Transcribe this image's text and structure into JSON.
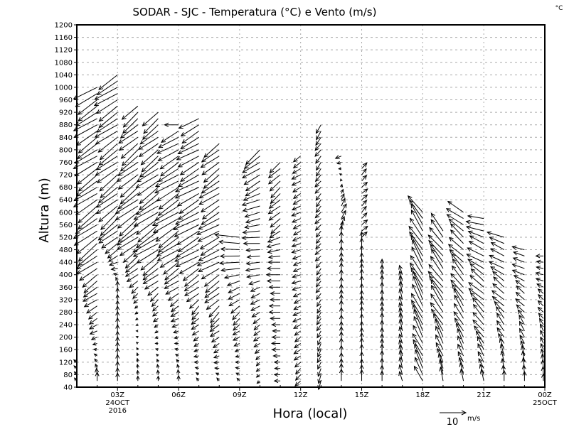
{
  "chart_data": {
    "type": "vector",
    "title": "SODAR - SJC - Temperatura (°C) e Vento (m/s)",
    "corner_unit": "°C",
    "xlabel": "Hora (local)",
    "ylabel": "Altura (m)",
    "ylim": [
      40,
      1200
    ],
    "yticks": [
      40,
      80,
      120,
      160,
      200,
      240,
      280,
      320,
      360,
      400,
      440,
      480,
      520,
      560,
      600,
      640,
      680,
      720,
      760,
      800,
      840,
      880,
      920,
      960,
      1000,
      1040,
      1080,
      1120,
      1160,
      1200
    ],
    "xlim_hours": [
      1,
      24
    ],
    "xticks": [
      {
        "hour": 3,
        "label": "03Z",
        "sub1": "24OCT",
        "sub2": "2016"
      },
      {
        "hour": 6,
        "label": "06Z"
      },
      {
        "hour": 9,
        "label": "09Z"
      },
      {
        "hour": 12,
        "label": "12Z"
      },
      {
        "hour": 15,
        "label": "15Z"
      },
      {
        "hour": 18,
        "label": "18Z"
      },
      {
        "hour": 21,
        "label": "21Z"
      },
      {
        "hour": 24,
        "label": "00Z",
        "sub1": "25OCT"
      }
    ],
    "grid": true,
    "reference_vector": {
      "value": "10",
      "unit": "m/s",
      "speed": 10
    },
    "level_step_m": 20,
    "columns": [
      {
        "hour": 1,
        "bottom": 60,
        "top": 120,
        "profile": [
          [
            60,
            -1,
            1
          ],
          [
            120,
            -1,
            1
          ]
        ]
      },
      {
        "hour": 2,
        "bottom": 60,
        "top": 1000,
        "profile": [
          [
            60,
            0,
            3
          ],
          [
            200,
            -2,
            -1
          ],
          [
            500,
            -8,
            -6
          ],
          [
            1000,
            -8,
            -5
          ]
        ]
      },
      {
        "hour": 3,
        "bottom": 60,
        "top": 1040,
        "profile": [
          [
            60,
            0,
            3
          ],
          [
            360,
            0,
            2
          ],
          [
            560,
            -7,
            -6
          ],
          [
            1040,
            -8,
            -5
          ]
        ]
      },
      {
        "hour": 4,
        "bottom": 60,
        "top": 950,
        "profile": [
          [
            60,
            0,
            2
          ],
          [
            300,
            -1,
            -1
          ],
          [
            560,
            -8,
            -6
          ],
          [
            950,
            -6,
            -5
          ]
        ]
      },
      {
        "hour": 5,
        "bottom": 60,
        "top": 930,
        "profile": [
          [
            60,
            0,
            2
          ],
          [
            300,
            -2,
            -2
          ],
          [
            520,
            -9,
            -6
          ],
          [
            930,
            -6,
            -5
          ]
        ]
      },
      {
        "hour": 6,
        "bottom": 60,
        "top": 880,
        "profile": [
          [
            60,
            0,
            2
          ],
          [
            300,
            -3,
            -2
          ],
          [
            560,
            -9,
            -6
          ],
          [
            860,
            -7,
            -4
          ],
          [
            880,
            -6,
            0
          ]
        ]
      },
      {
        "hour": 7,
        "bottom": 60,
        "top": 900,
        "profile": [
          [
            60,
            -1,
            1
          ],
          [
            300,
            -3,
            -3
          ],
          [
            500,
            -9,
            -5
          ],
          [
            900,
            -7,
            -4
          ]
        ]
      },
      {
        "hour": 8,
        "bottom": 60,
        "top": 820,
        "profile": [
          [
            60,
            -1,
            1
          ],
          [
            300,
            -4,
            -4
          ],
          [
            480,
            -8,
            -4
          ],
          [
            820,
            -6,
            -5
          ]
        ]
      },
      {
        "hour": 9,
        "bottom": 60,
        "top": 520,
        "profile": [
          [
            60,
            -1,
            1
          ],
          [
            300,
            -3,
            -3
          ],
          [
            520,
            -9,
            1
          ]
        ]
      },
      {
        "hour": 10,
        "bottom": 60,
        "top": 800,
        "profile": [
          [
            60,
            -1,
            -1
          ],
          [
            300,
            -3,
            -2
          ],
          [
            500,
            -6,
            0
          ],
          [
            800,
            -6,
            -5
          ]
        ]
      },
      {
        "hour": 11,
        "bottom": 60,
        "top": 760,
        "profile": [
          [
            60,
            -2,
            0
          ],
          [
            440,
            -5,
            0
          ],
          [
            560,
            -4,
            -3
          ],
          [
            760,
            -4,
            -4
          ]
        ]
      },
      {
        "hour": 12,
        "bottom": 60,
        "top": 780,
        "profile": [
          [
            60,
            -2,
            -2
          ],
          [
            400,
            -3,
            -1
          ],
          [
            780,
            -3,
            -2
          ]
        ]
      },
      {
        "hour": 13,
        "bottom": 60,
        "top": 880,
        "profile": [
          [
            60,
            -1,
            -3
          ],
          [
            500,
            -2,
            -2
          ],
          [
            880,
            -2,
            -3
          ]
        ]
      },
      {
        "hour": 14,
        "bottom": 60,
        "top": 780,
        "profile": [
          [
            60,
            0,
            4
          ],
          [
            520,
            0,
            4
          ],
          [
            600,
            2,
            3
          ],
          [
            780,
            -2,
            -1
          ]
        ]
      },
      {
        "hour": 15,
        "bottom": 60,
        "top": 750,
        "profile": [
          [
            60,
            0,
            4
          ],
          [
            500,
            0,
            4
          ],
          [
            520,
            2,
            2
          ],
          [
            750,
            2,
            2
          ]
        ]
      },
      {
        "hour": 16,
        "bottom": 60,
        "top": 430,
        "profile": [
          [
            60,
            0,
            4
          ],
          [
            430,
            0,
            4
          ]
        ]
      },
      {
        "hour": 17,
        "bottom": 60,
        "top": 400,
        "profile": [
          [
            60,
            -1,
            4
          ],
          [
            400,
            -1,
            4
          ]
        ]
      },
      {
        "hour": 18,
        "bottom": 60,
        "top": 600,
        "profile": [
          [
            60,
            -3,
            6
          ],
          [
            300,
            -4,
            8
          ],
          [
            600,
            -5,
            7
          ]
        ]
      },
      {
        "hour": 19,
        "bottom": 60,
        "top": 550,
        "profile": [
          [
            60,
            -1,
            5
          ],
          [
            300,
            -5,
            7
          ],
          [
            550,
            -5,
            6
          ]
        ]
      },
      {
        "hour": 20,
        "bottom": 60,
        "top": 610,
        "profile": [
          [
            60,
            -1,
            4
          ],
          [
            300,
            -4,
            6
          ],
          [
            610,
            -6,
            4
          ]
        ]
      },
      {
        "hour": 21,
        "bottom": 60,
        "top": 580,
        "profile": [
          [
            60,
            -1,
            4
          ],
          [
            300,
            -5,
            5
          ],
          [
            480,
            -6,
            3
          ],
          [
            580,
            -6,
            1
          ]
        ]
      },
      {
        "hour": 22,
        "bottom": 60,
        "top": 530,
        "profile": [
          [
            60,
            0,
            4
          ],
          [
            300,
            -4,
            4
          ],
          [
            530,
            -6,
            2
          ]
        ]
      },
      {
        "hour": 23,
        "bottom": 60,
        "top": 490,
        "profile": [
          [
            60,
            0,
            4
          ],
          [
            300,
            -3,
            3
          ],
          [
            490,
            -5,
            1
          ]
        ]
      },
      {
        "hour": 24,
        "bottom": 60,
        "top": 460,
        "profile": [
          [
            60,
            0,
            3
          ],
          [
            300,
            -2,
            2
          ],
          [
            460,
            -3,
            0
          ]
        ]
      }
    ]
  }
}
